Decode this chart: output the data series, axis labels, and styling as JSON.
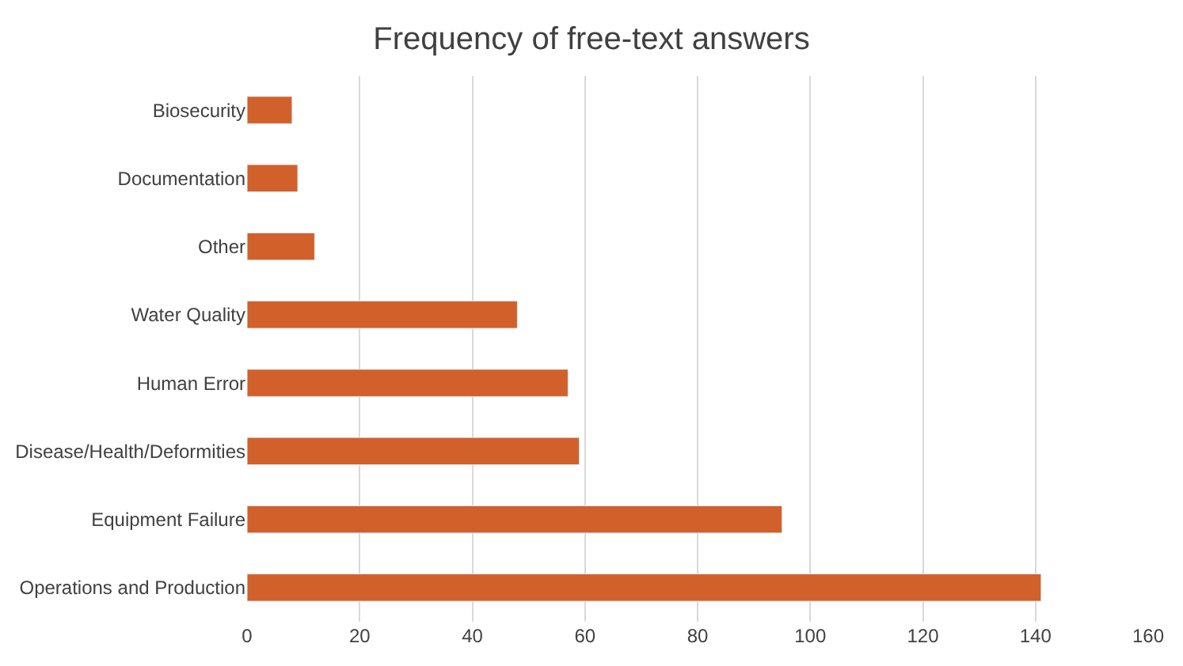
{
  "chart_data": {
    "type": "bar",
    "orientation": "horizontal",
    "title": "Frequency of free-text answers",
    "categories": [
      "Biosecurity",
      "Documentation",
      "Other",
      "Water Quality",
      "Human Error",
      "Disease/Health/Deformities",
      "Equipment Failure",
      "Operations and Production"
    ],
    "values": [
      8,
      9,
      12,
      48,
      57,
      59,
      95,
      141
    ],
    "color": "#d2602a",
    "xlim": [
      0,
      160
    ],
    "xticks": [
      0,
      20,
      40,
      60,
      80,
      100,
      120,
      140,
      160
    ],
    "grid": "x"
  }
}
